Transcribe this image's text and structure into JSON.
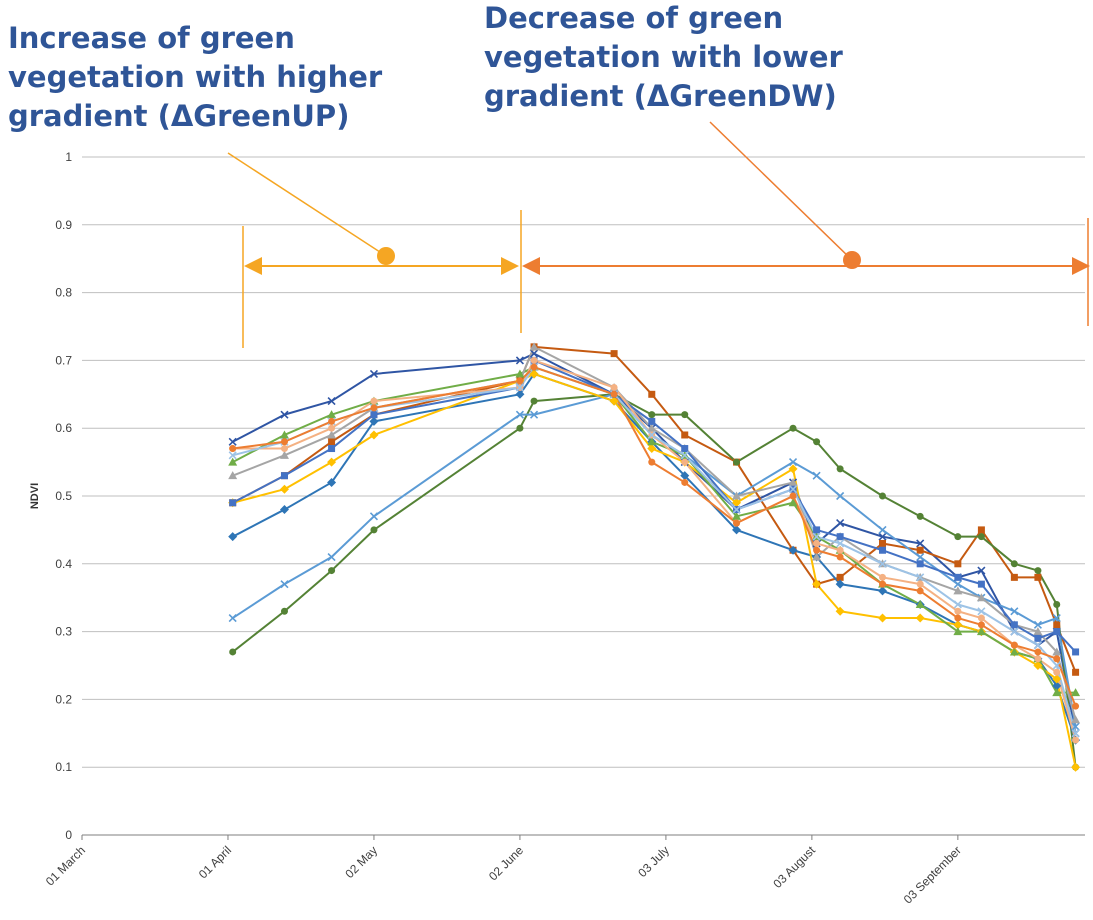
{
  "chart_data": {
    "type": "line",
    "annotations": [
      [
        "Increase of green",
        "vegetation with higher",
        "gradient (ΔGreenUP)"
      ],
      [
        "Decrease of green",
        "vegetation with lower",
        "gradient (ΔGreenDW)"
      ]
    ],
    "y_label": "NDVI",
    "ylim": [
      0,
      1
    ],
    "yticks": [
      0,
      0.1,
      0.2,
      0.3,
      0.4,
      0.5,
      0.6,
      0.7,
      0.8,
      0.9,
      1
    ],
    "xlim": [
      0,
      213
    ],
    "xticks": [
      {
        "value": 0,
        "label": "01 March"
      },
      {
        "value": 31,
        "label": "01 April"
      },
      {
        "value": 62,
        "label": "02 May"
      },
      {
        "value": 93,
        "label": "02 June"
      },
      {
        "value": 124,
        "label": "03 July"
      },
      {
        "value": 155,
        "label": "03 August"
      },
      {
        "value": 186,
        "label": "03 September"
      }
    ],
    "grid": true,
    "x": [
      32,
      43,
      53,
      62,
      93,
      96,
      113,
      121,
      128,
      139,
      151,
      156,
      161,
      170,
      178,
      186,
      191,
      198,
      203,
      207,
      211
    ],
    "series": [
      {
        "color": "#2f55a4",
        "marker": "x",
        "values": [
          0.58,
          0.62,
          0.64,
          0.68,
          0.7,
          0.71,
          0.65,
          0.6,
          0.55,
          0.48,
          0.52,
          0.43,
          0.46,
          0.44,
          0.43,
          0.38,
          0.39,
          0.3,
          0.28,
          0.3,
          0.15
        ]
      },
      {
        "color": "#c55a11",
        "marker": "square",
        "values": [
          0.49,
          0.53,
          0.58,
          0.62,
          0.67,
          0.72,
          0.71,
          0.65,
          0.59,
          0.55,
          0.42,
          0.37,
          0.38,
          0.43,
          0.42,
          0.4,
          0.45,
          0.38,
          0.38,
          0.31,
          0.24
        ]
      },
      {
        "color": "#548235",
        "marker": "circle",
        "values": [
          0.27,
          0.33,
          0.39,
          0.45,
          0.6,
          0.64,
          0.65,
          0.62,
          0.62,
          0.55,
          0.6,
          0.58,
          0.54,
          0.5,
          0.47,
          0.44,
          0.44,
          0.4,
          0.39,
          0.34,
          0.1
        ]
      },
      {
        "color": "#5b9bd5",
        "marker": "x",
        "values": [
          0.32,
          0.37,
          0.41,
          0.47,
          0.62,
          0.62,
          0.65,
          0.59,
          0.56,
          0.5,
          0.55,
          0.53,
          0.5,
          0.45,
          0.41,
          0.37,
          0.35,
          0.33,
          0.31,
          0.32,
          0.16
        ]
      },
      {
        "color": "#2e75b6",
        "marker": "diamond",
        "values": [
          0.44,
          0.48,
          0.52,
          0.61,
          0.65,
          0.68,
          0.64,
          0.58,
          0.53,
          0.45,
          0.42,
          0.41,
          0.37,
          0.36,
          0.34,
          0.31,
          0.3,
          0.27,
          0.26,
          0.22,
          0.14
        ]
      },
      {
        "color": "#ffc000",
        "marker": "diamond",
        "values": [
          0.49,
          0.51,
          0.55,
          0.59,
          0.67,
          0.68,
          0.64,
          0.57,
          0.55,
          0.49,
          0.54,
          0.37,
          0.33,
          0.32,
          0.32,
          0.31,
          0.3,
          0.27,
          0.25,
          0.23,
          0.1
        ]
      },
      {
        "color": "#70ad47",
        "marker": "triangle",
        "values": [
          0.55,
          0.59,
          0.62,
          0.64,
          0.68,
          0.69,
          0.65,
          0.58,
          0.56,
          0.47,
          0.49,
          0.44,
          0.42,
          0.37,
          0.34,
          0.3,
          0.3,
          0.27,
          0.26,
          0.21,
          0.21
        ]
      },
      {
        "color": "#a5a5a5",
        "marker": "triangle",
        "values": [
          0.53,
          0.56,
          0.59,
          0.63,
          0.67,
          0.72,
          0.66,
          0.6,
          0.57,
          0.5,
          0.52,
          0.41,
          0.44,
          0.4,
          0.38,
          0.36,
          0.35,
          0.31,
          0.3,
          0.27,
          0.17
        ]
      },
      {
        "color": "#4472c4",
        "marker": "square",
        "values": [
          0.49,
          0.53,
          0.57,
          0.62,
          0.66,
          0.7,
          0.65,
          0.61,
          0.57,
          0.48,
          0.51,
          0.45,
          0.44,
          0.42,
          0.4,
          0.38,
          0.37,
          0.31,
          0.29,
          0.3,
          0.27
        ]
      },
      {
        "color": "#f4b183",
        "marker": "circle",
        "values": [
          0.57,
          0.57,
          0.6,
          0.64,
          0.66,
          0.7,
          0.66,
          0.59,
          0.55,
          0.46,
          0.5,
          0.43,
          0.42,
          0.38,
          0.37,
          0.33,
          0.32,
          0.28,
          0.26,
          0.24,
          0.14
        ]
      },
      {
        "color": "#9dc3e6",
        "marker": "x",
        "values": [
          0.56,
          0.58,
          0.61,
          0.63,
          0.66,
          0.69,
          0.65,
          0.59,
          0.56,
          0.48,
          0.51,
          0.44,
          0.43,
          0.4,
          0.38,
          0.34,
          0.33,
          0.3,
          0.28,
          0.25,
          0.15
        ]
      },
      {
        "color": "#ed7d31",
        "marker": "circle",
        "values": [
          0.57,
          0.58,
          0.61,
          0.63,
          0.67,
          0.69,
          0.65,
          0.55,
          0.52,
          0.46,
          0.5,
          0.42,
          0.41,
          0.37,
          0.36,
          0.32,
          0.31,
          0.28,
          0.27,
          0.26,
          0.19
        ]
      }
    ]
  }
}
